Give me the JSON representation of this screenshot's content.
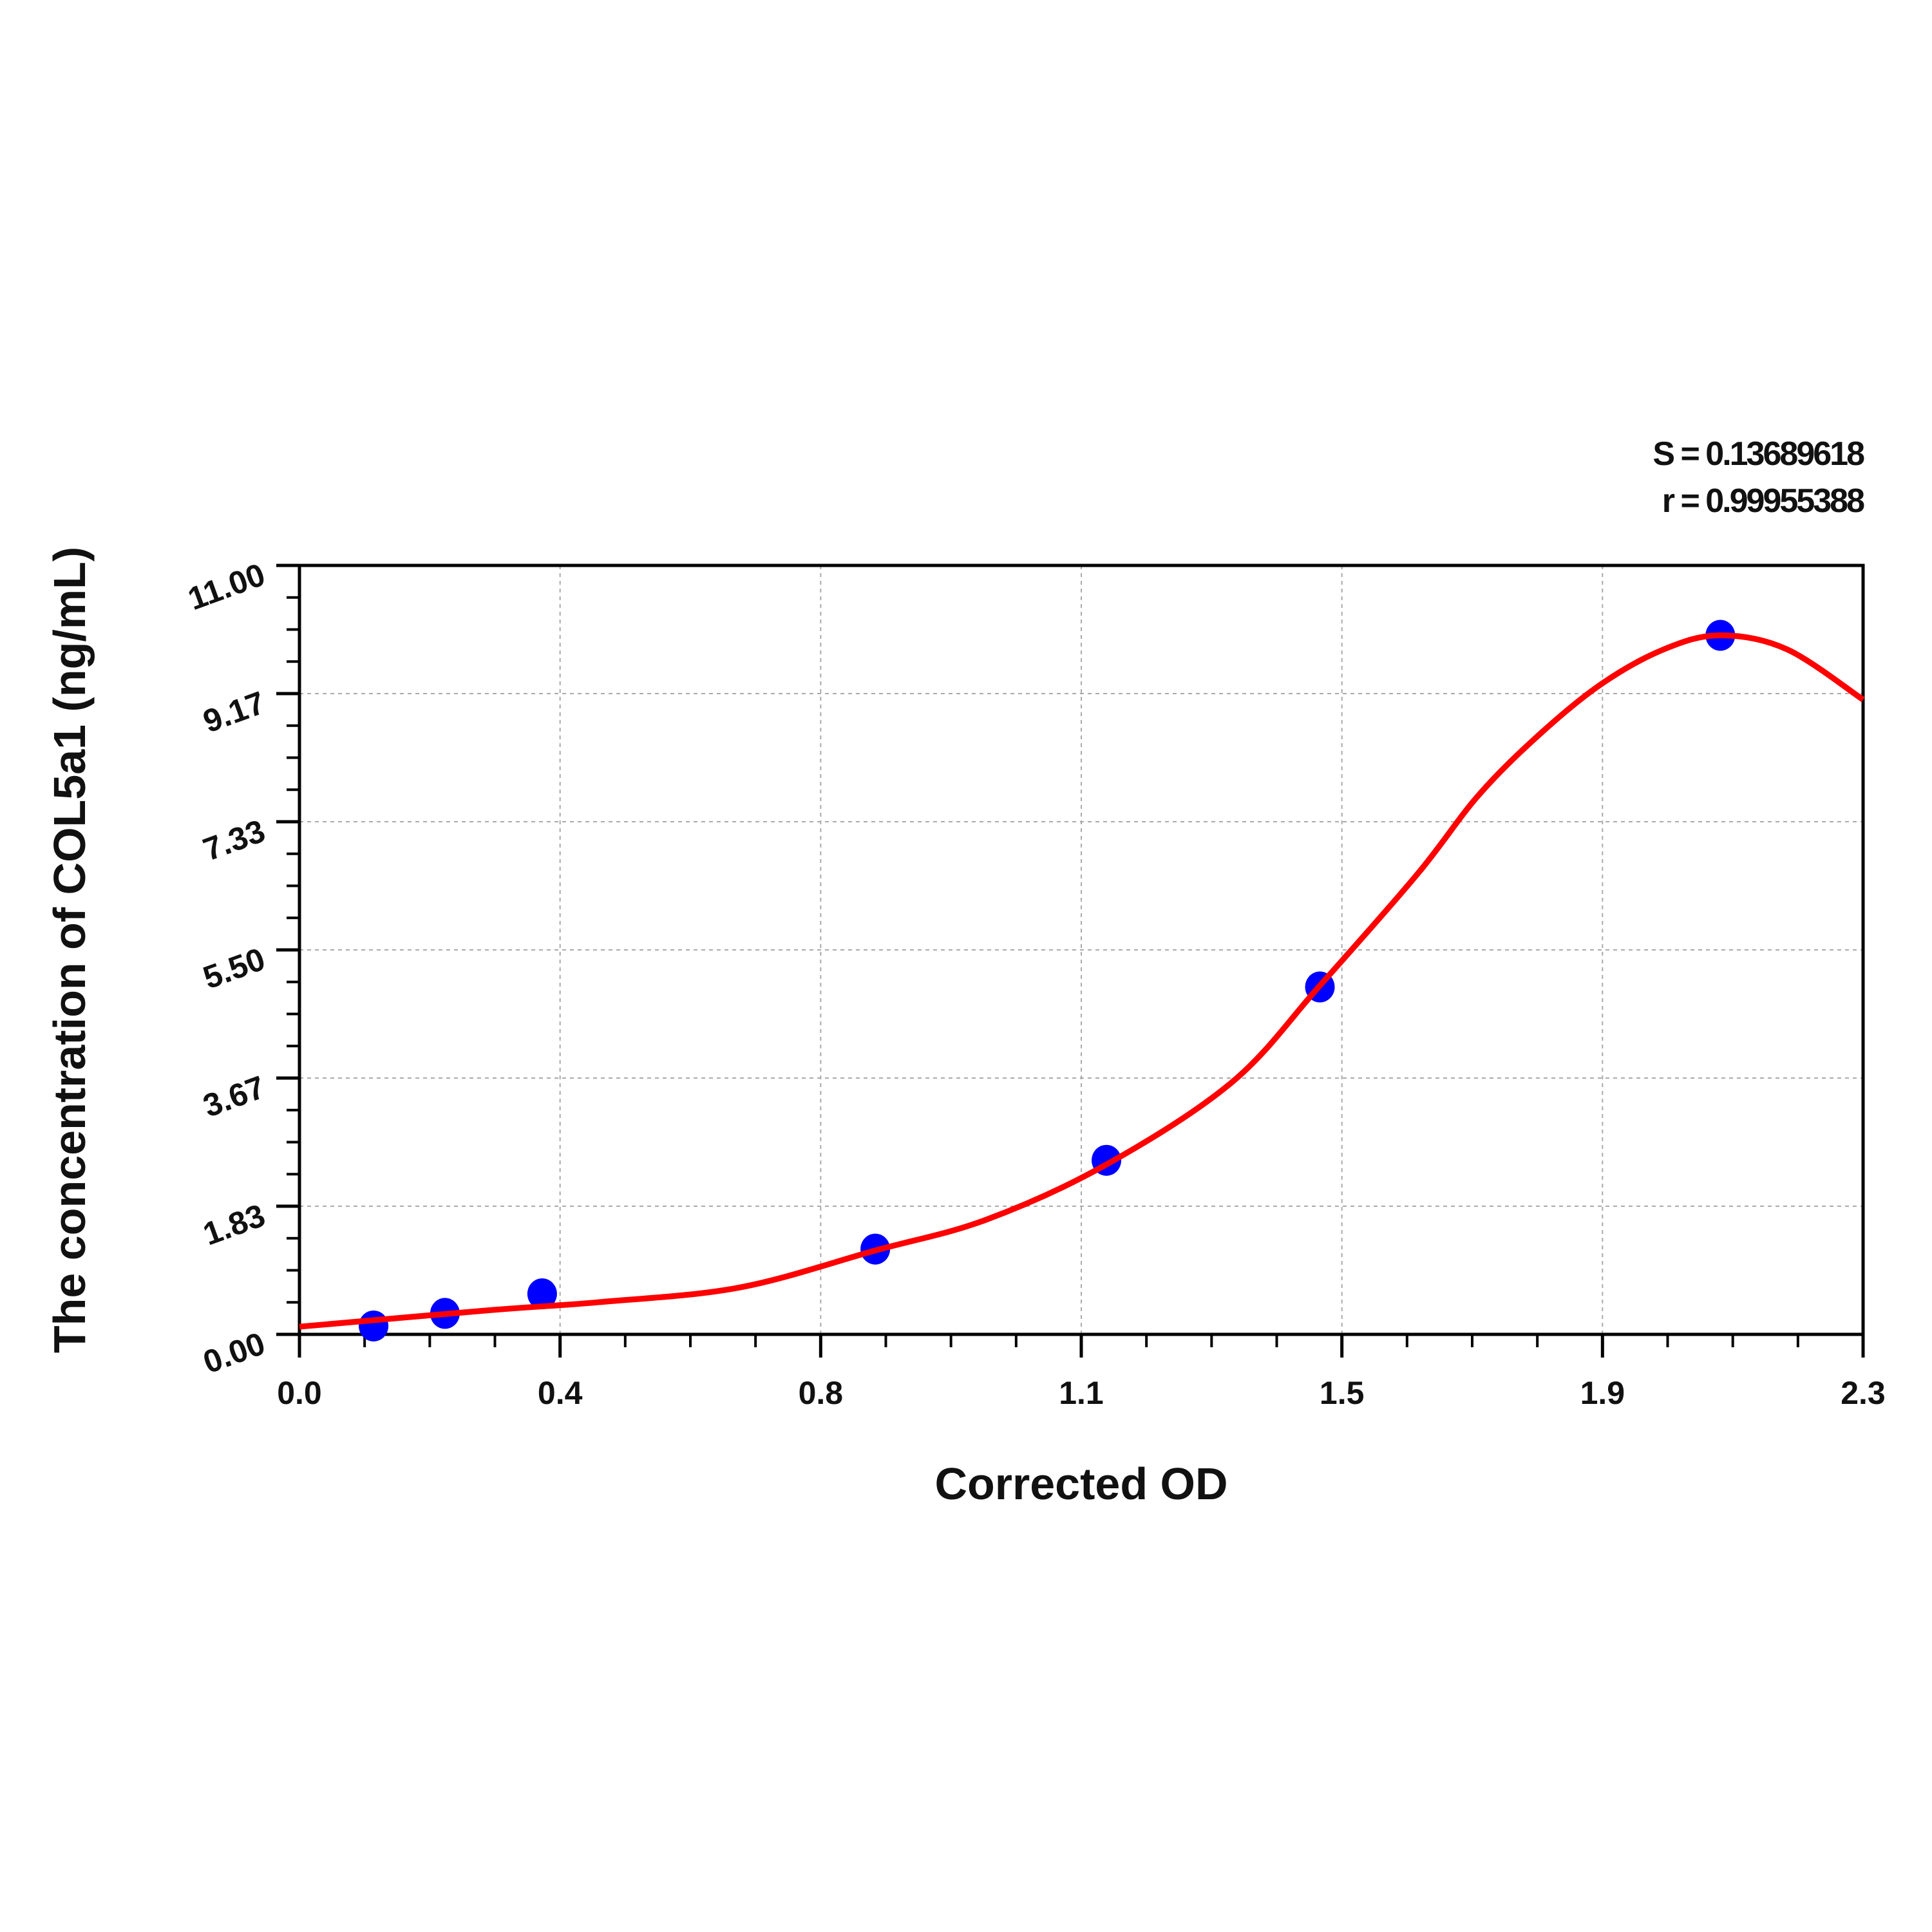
{
  "chart_data": {
    "type": "scatter",
    "title": "",
    "xlabel": "Corrected OD",
    "ylabel": "The concentration of COL5a1 (ng/mL)",
    "xlim": [
      0,
      2.3
    ],
    "ylim": [
      0,
      11
    ],
    "x_ticks": [
      "0.0",
      "0.4",
      "0.8",
      "1.1",
      "1.5",
      "1.9",
      "2.3"
    ],
    "y_ticks": [
      "0.00",
      "1.83",
      "3.67",
      "5.50",
      "7.33",
      "9.17",
      "11.00"
    ],
    "grid": true,
    "annotations": [
      "S = 0.13689618",
      "r = 0.99955388"
    ],
    "points": {
      "color": "#0000ff",
      "x": [
        0.109,
        0.214,
        0.357,
        0.847,
        1.187,
        1.501,
        2.09
      ],
      "y": [
        0.12,
        0.3,
        0.58,
        1.22,
        2.49,
        4.97,
        10.0
      ]
    },
    "fit_curve": {
      "color": "#ff0000",
      "x": [
        0,
        0.285,
        0.44,
        0.647,
        0.847,
        1.01,
        1.187,
        1.372,
        1.501,
        1.644,
        1.735,
        1.826,
        1.916,
        2.007,
        2.09,
        2.188,
        2.3
      ],
      "y": [
        0.11,
        0.35,
        0.46,
        0.67,
        1.2,
        1.64,
        2.43,
        3.61,
        4.99,
        6.58,
        7.72,
        8.6,
        9.31,
        9.8,
        10.0,
        9.8,
        9.08
      ]
    }
  }
}
